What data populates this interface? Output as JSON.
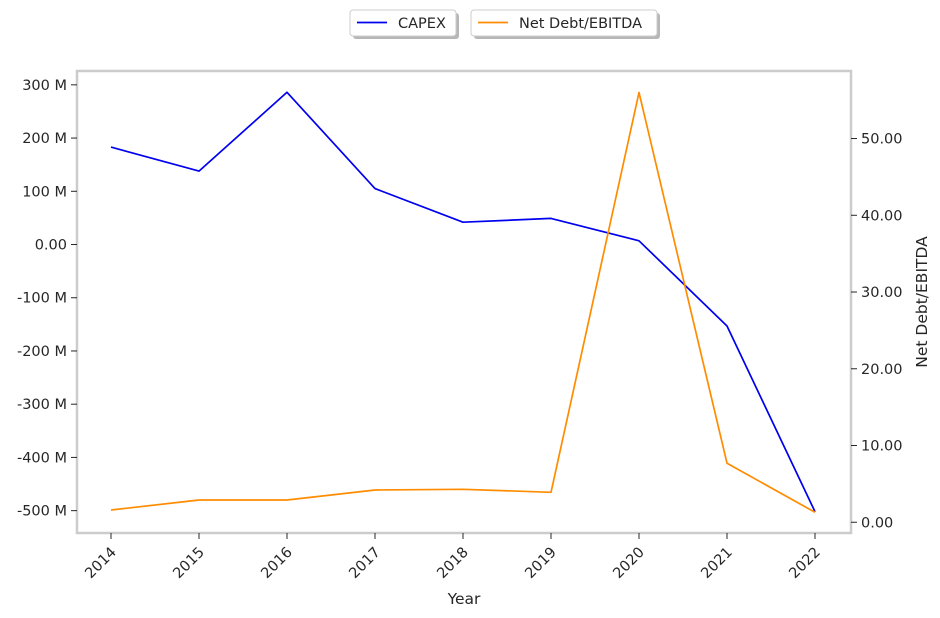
{
  "chart_data": {
    "type": "line",
    "xlabel": "Year",
    "x": [
      "2014",
      "2015",
      "2016",
      "2017",
      "2018",
      "2019",
      "2020",
      "2021",
      "2022"
    ],
    "left_axis": {
      "ticks": [
        300,
        200,
        100,
        0,
        -100,
        -200,
        -300,
        -400,
        -500
      ],
      "tick_labels": [
        "300 M",
        "200 M",
        "100 M",
        "0.00",
        "-100 M",
        "-200 M",
        "-300 M",
        "-400 M",
        "-500 M"
      ],
      "ylim": [
        -542,
        326
      ],
      "unit": "M"
    },
    "right_axis": {
      "label": "Net Debt/EBITDA",
      "ticks": [
        50,
        40,
        30,
        20,
        10,
        0
      ],
      "tick_labels": [
        "50.00",
        "40.00",
        "30.00",
        "20.00",
        "10.00",
        "0.00"
      ],
      "ylim": [
        -1.4,
        58.8
      ]
    },
    "series": [
      {
        "name": "CAPEX",
        "axis": "left",
        "color": "#0000ee",
        "values": [
          183,
          138,
          286,
          105,
          42,
          49,
          7,
          -153,
          -502
        ]
      },
      {
        "name": "Net Debt/EBITDA",
        "axis": "right",
        "color": "#ff8c00",
        "values": [
          1.6,
          2.9,
          2.9,
          4.2,
          4.3,
          3.9,
          56.0,
          7.7,
          1.3
        ]
      }
    ],
    "legend": {
      "placement": "top-center"
    },
    "grid": false
  }
}
